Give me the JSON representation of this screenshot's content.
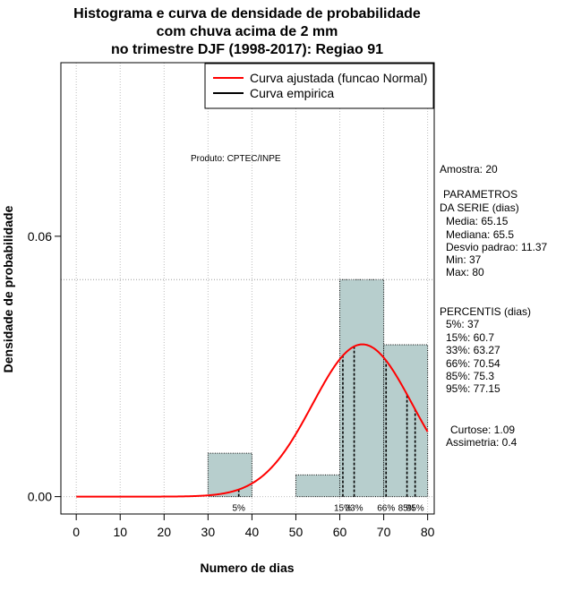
{
  "chart_data": {
    "type": "bar",
    "title_lines": [
      "Histograma e curva de densidade de probabilidade",
      "com chuva acima de 2 mm",
      "no trimestre DJF (1998-2017): Regiao 91"
    ],
    "xlabel": "Numero de dias",
    "ylabel": "Densidade de probabilidade",
    "xlim": [
      -3.5,
      81.5
    ],
    "ylim": [
      -0.004,
      0.1
    ],
    "x_ticks": [
      0,
      10,
      20,
      30,
      40,
      50,
      60,
      70,
      80
    ],
    "x_tick_labels": [
      "0",
      "10",
      "20",
      "30",
      "40",
      "50",
      "60",
      "70",
      "80"
    ],
    "y_ticks": [
      0.0,
      0.06
    ],
    "y_tick_labels": [
      "0.00",
      "0.06"
    ],
    "bins": [
      {
        "from": 30,
        "to": 40,
        "density": 0.01
      },
      {
        "from": 40,
        "to": 50,
        "density": 0.0
      },
      {
        "from": 50,
        "to": 60,
        "density": 0.005
      },
      {
        "from": 60,
        "to": 70,
        "density": 0.05
      },
      {
        "from": 70,
        "to": 80,
        "density": 0.035
      }
    ],
    "ref_line_y": 0.05,
    "normal_curve": {
      "name": "Curva ajustada (funcao Normal)",
      "mean": 65.15,
      "sd": 11.37,
      "x_from": 0,
      "x_to": 80,
      "color": "#ff0000"
    },
    "empirical_curve": {
      "name": "Curva empirica",
      "color": "#000000"
    },
    "percentile_lines": [
      {
        "x": 37,
        "label": "5%"
      },
      {
        "x": 60.7,
        "label": "15%"
      },
      {
        "x": 63.27,
        "label": "33%"
      },
      {
        "x": 70.54,
        "label": "66%"
      },
      {
        "x": 75.3,
        "label": "85%"
      },
      {
        "x": 77.15,
        "label": "95%"
      }
    ],
    "annotation": "Produto: CPTEC/INPE",
    "bar_color": "#b7cecd",
    "grid_color": "#bdbdbd"
  },
  "side_panel": {
    "amostra": "Amostra: 20",
    "param_header_1": "PARAMETROS",
    "param_header_2": "DA SERIE (dias)",
    "media": "Media: 65.15",
    "mediana": "Mediana: 65.5",
    "desvio": "Desvio padrao: 11.37",
    "min": "Min: 37",
    "max": "Max: 80",
    "percentis_header": "PERCENTIS (dias)",
    "p5": "5%: 37",
    "p15": "15%: 60.7",
    "p33": "33%: 63.27",
    "p66": "66%: 70.54",
    "p85": "85%: 75.3",
    "p95": "95%: 77.15",
    "curtose": "Curtose: 1.09",
    "assimetria": "Assimetria: 0.4"
  }
}
